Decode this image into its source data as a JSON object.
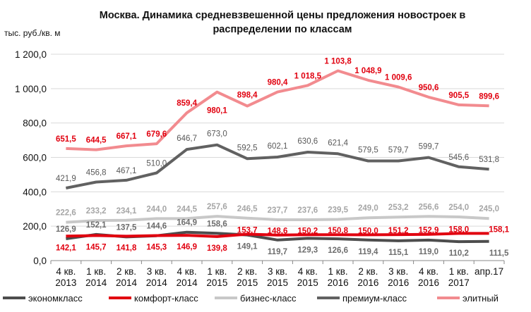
{
  "chart_data": {
    "type": "line",
    "title": "Москва. Динамика средневзвешенной цены предложения новостроек в распределении по классам",
    "ylabel": "тыс. руб./кв. м",
    "xlabel": "",
    "ylim": [
      0,
      1200
    ],
    "yticks": [
      "0,0",
      "200,0",
      "400,0",
      "600,0",
      "800,0",
      "1 000,0",
      "1 200,0"
    ],
    "grid": true,
    "legend": "bottom",
    "categories": [
      [
        "4 кв.",
        "2013"
      ],
      [
        "1 кв.",
        "2014"
      ],
      [
        "2 кв.",
        "2014"
      ],
      [
        "3 кв.",
        "2014"
      ],
      [
        "4 кв.",
        "2014"
      ],
      [
        "1 кв.",
        "2015"
      ],
      [
        "2 кв.",
        "2015"
      ],
      [
        "3 кв.",
        "2015"
      ],
      [
        "4 кв.",
        "2015"
      ],
      [
        "1 кв.",
        "2016"
      ],
      [
        "2 кв.",
        "2016"
      ],
      [
        "3 кв.",
        "2016"
      ],
      [
        "4 кв.",
        "2016"
      ],
      [
        "1 кв.",
        "2017"
      ],
      [
        "апр.17",
        ""
      ]
    ],
    "series": [
      {
        "name": "экономкласс",
        "color": "#4d4d4d",
        "values": [
          126.9,
          152.1,
          137.5,
          144.6,
          164.9,
          158.6,
          149.1,
          119.7,
          129.3,
          126.6,
          119.4,
          115.1,
          119.0,
          110.2,
          111.5
        ],
        "labels": [
          "126,9",
          "152,1",
          "137,5",
          "144,6",
          "164,9",
          "158,6",
          "149,1",
          "119,7",
          "129,3",
          "126,6",
          "119,4",
          "115,1",
          "119,0",
          "110,2",
          "111,5"
        ]
      },
      {
        "name": "комфорт-класс",
        "color": "#e1000f",
        "values": [
          142.1,
          145.7,
          141.8,
          145.3,
          146.9,
          139.8,
          153.7,
          148.6,
          150.2,
          150.8,
          150.0,
          151.2,
          152.9,
          158.0,
          158.1
        ],
        "labels": [
          "142,1",
          "145,7",
          "141,8",
          "145,3",
          "146,9",
          "139,8",
          "153,7",
          "148,6",
          "150,2",
          "150,8",
          "150,0",
          "151,2",
          "152,9",
          "158,0",
          "158,1"
        ]
      },
      {
        "name": "бизнес-класс",
        "color": "#c8c8c8",
        "values": [
          222.6,
          233.2,
          234.1,
          244.0,
          244.5,
          257.6,
          246.5,
          237.7,
          237.6,
          239.5,
          249.0,
          253.2,
          256.6,
          254.0,
          245.0
        ],
        "labels": [
          "222,6",
          "233,2",
          "234,1",
          "244,0",
          "244,5",
          "257,6",
          "246,5",
          "237,7",
          "237,6",
          "239,5",
          "249,0",
          "253,2",
          "256,6",
          "254,0",
          "245,0"
        ]
      },
      {
        "name": "премиум-класс",
        "color": "#616161",
        "values": [
          421.9,
          456.8,
          467.1,
          510.0,
          646.7,
          673.0,
          592.5,
          602.1,
          630.6,
          621.4,
          579.5,
          579.7,
          599.7,
          545.6,
          531.8
        ],
        "labels": [
          "421,9",
          "456,8",
          "467,1",
          "510,0",
          "646,7",
          "673,0",
          "592,5",
          "602,1",
          "630,6",
          "621,4",
          "579,5",
          "579,7",
          "599,7",
          "545,6",
          "531,8"
        ]
      },
      {
        "name": "элитный",
        "color": "#f28b8f",
        "values": [
          651.5,
          644.5,
          667.1,
          679.6,
          859.4,
          980.1,
          898.4,
          980.4,
          1018.5,
          1103.8,
          1048.9,
          1009.6,
          950.6,
          905.5,
          899.6
        ],
        "labels": [
          "651,5",
          "644,5",
          "667,1",
          "679,6",
          "859,4",
          "980,1",
          "898,4",
          "980,4",
          "1 018,5",
          "1 103,8",
          "1 048,9",
          "1 009,6",
          "950,6",
          "905,5",
          "899,6"
        ]
      }
    ]
  }
}
